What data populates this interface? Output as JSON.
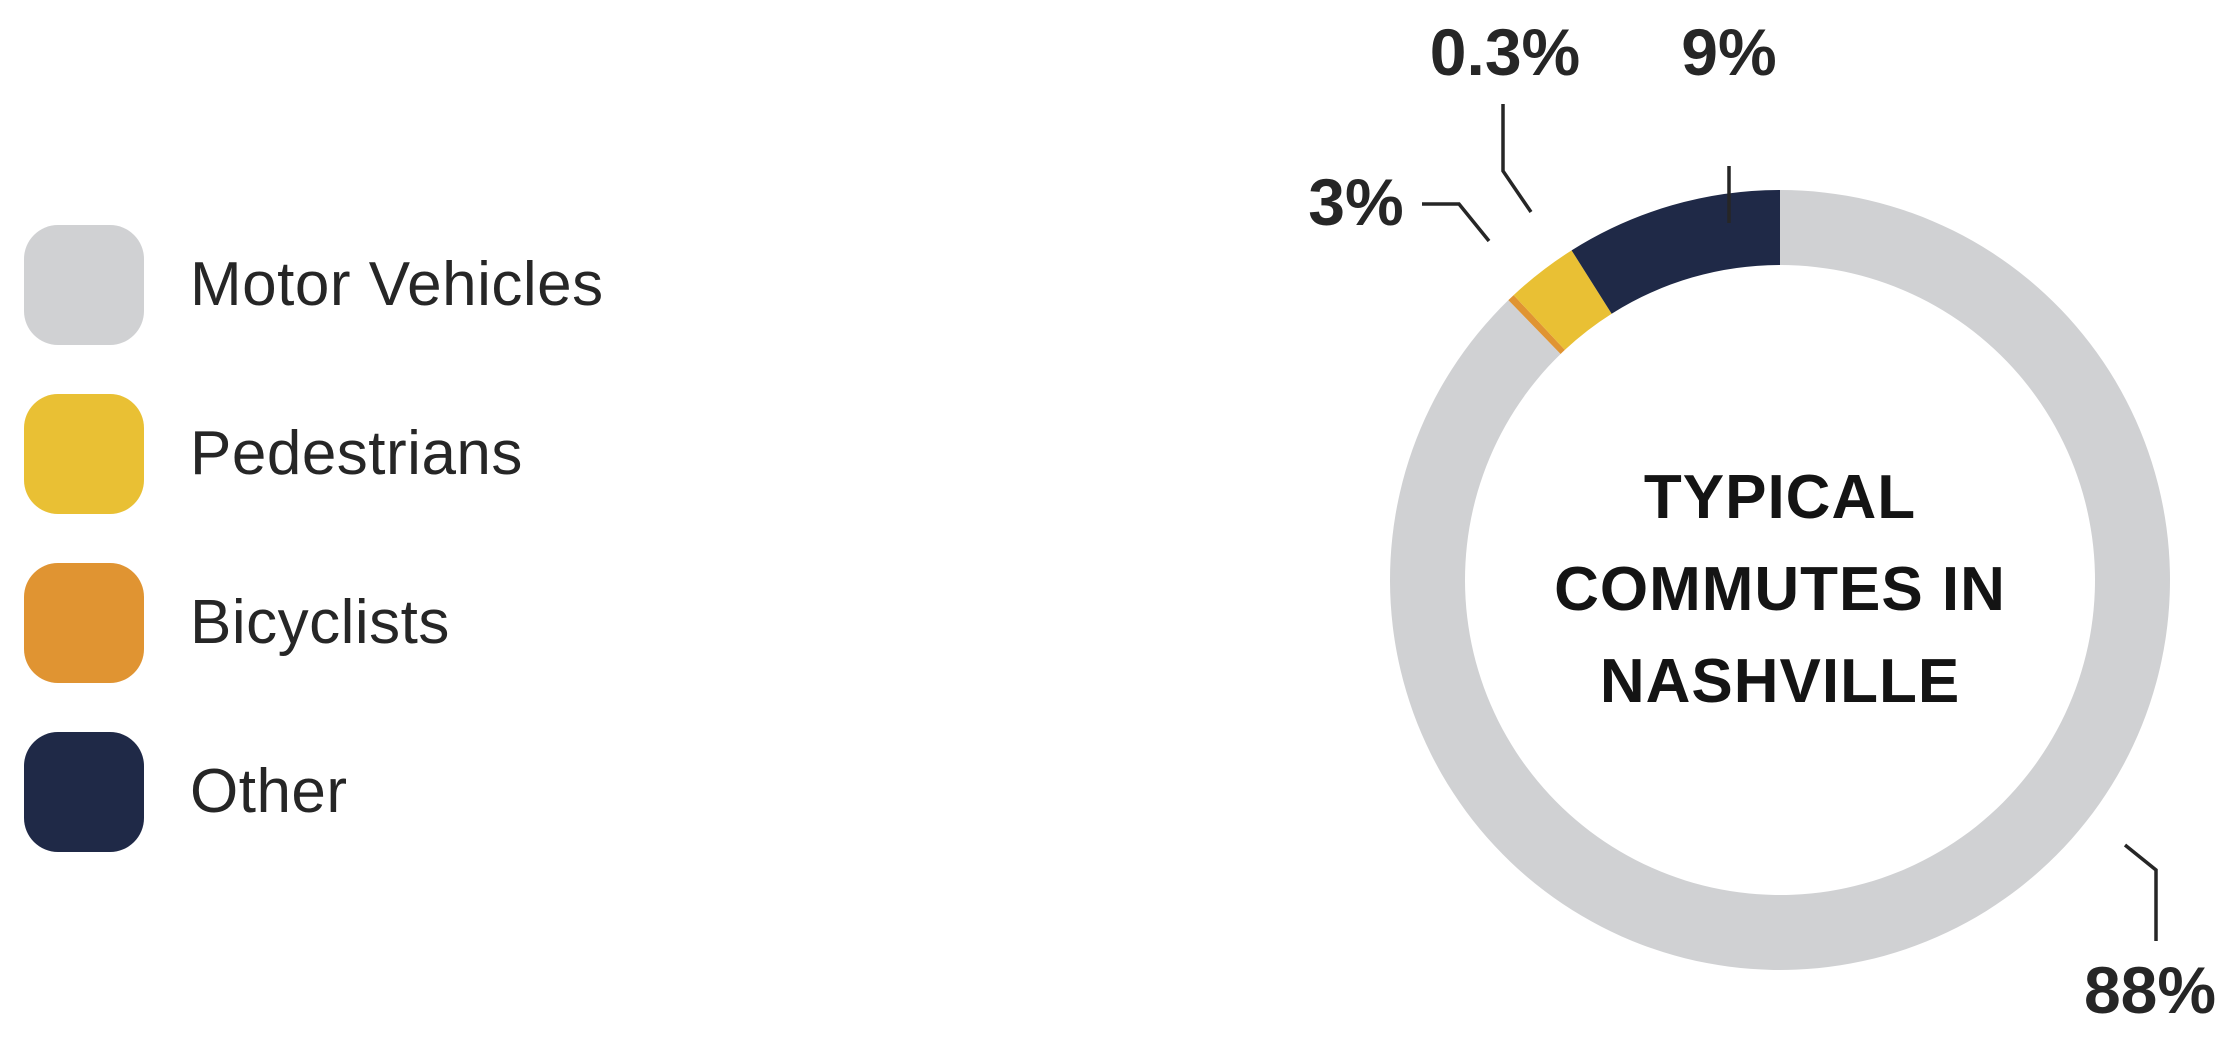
{
  "chart_data": {
    "type": "pie",
    "donut": true,
    "center_label": [
      "TYPICAL",
      "COMMUTES IN",
      "NASHVILLE"
    ],
    "slices": [
      {
        "label": "Motor Vehicles",
        "value": 88,
        "value_label": "88%",
        "color": "#d0d1d3"
      },
      {
        "label": "Pedestrians",
        "value": 3,
        "value_label": "3%",
        "color": "#e9c034"
      },
      {
        "label": "Bicyclists",
        "value": 0.3,
        "value_label": "0.3%",
        "color": "#e09432"
      },
      {
        "label": "Other",
        "value": 9,
        "value_label": "9%",
        "color": "#1f2947"
      }
    ],
    "legend_position": "left"
  }
}
